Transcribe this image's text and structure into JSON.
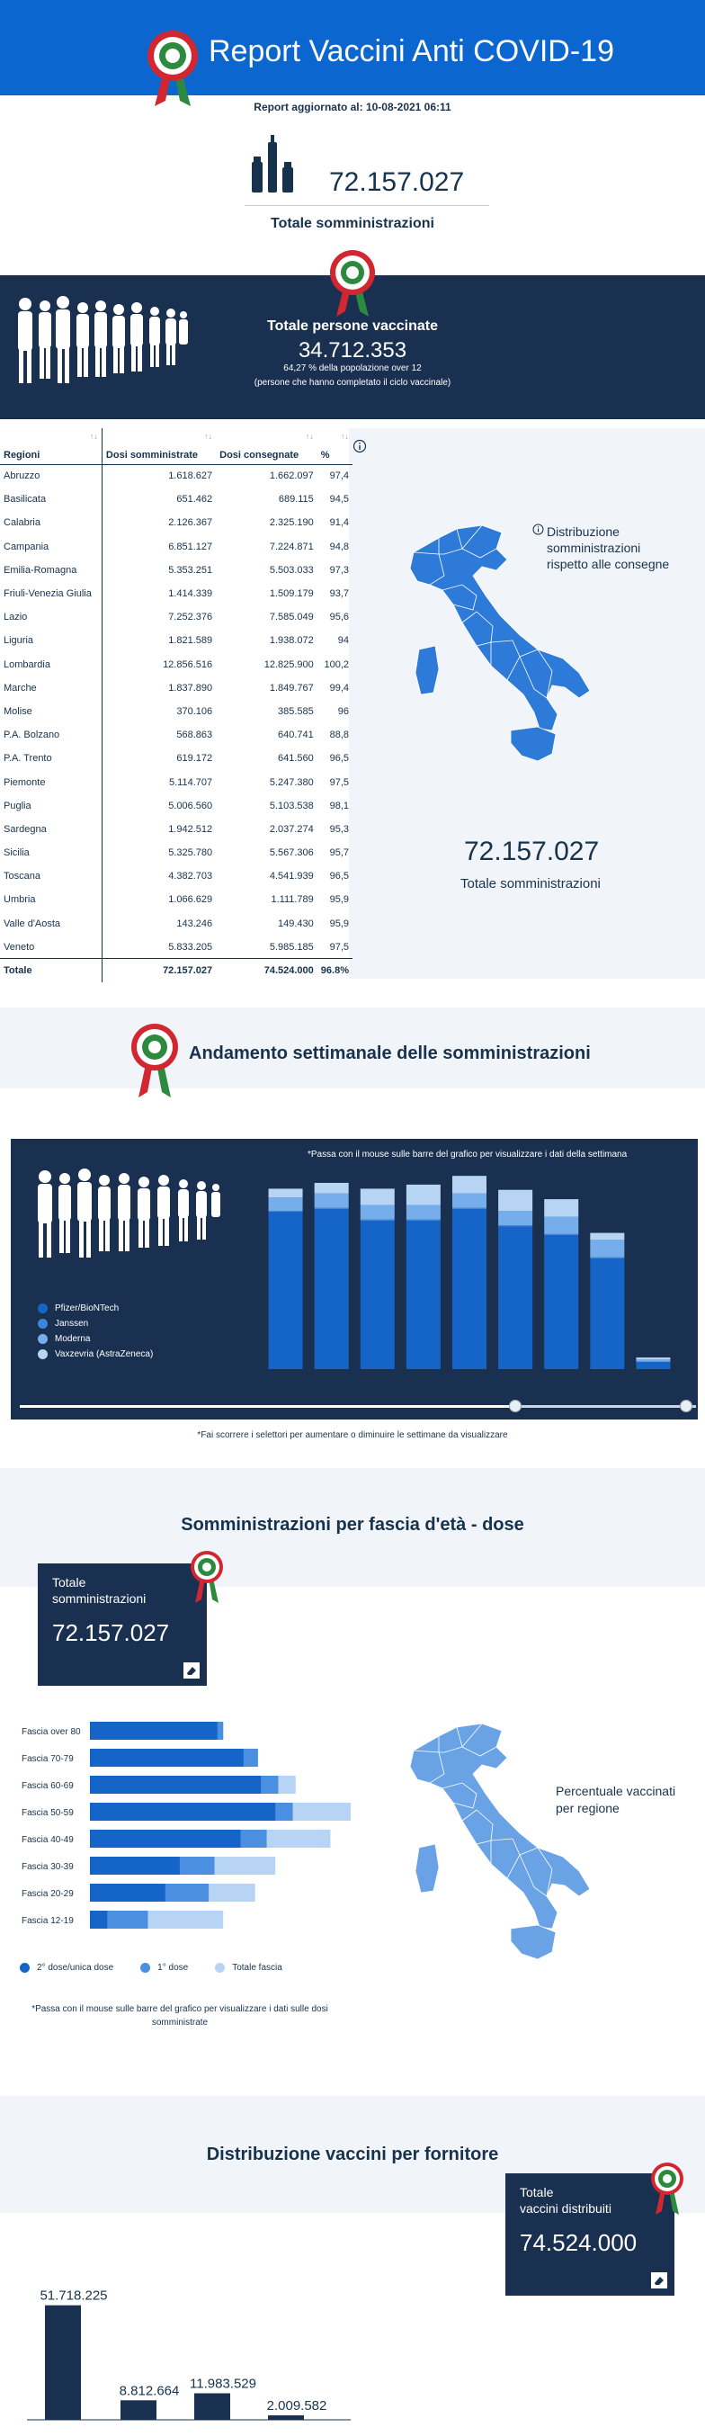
{
  "header": {
    "title": "Report Vaccini Anti COVID-19"
  },
  "updated": "Report aggiornato al: 10-08-2021 06:11",
  "total_administrations": {
    "value": "72.157.027",
    "label": "Totale somministrazioni"
  },
  "vaccinated": {
    "label": "Totale persone vaccinate",
    "value": "34.712.353",
    "percent_note": "64,27 % della popolazione over 12",
    "cycle_note": "(persone che hanno completato il ciclo vaccinale)"
  },
  "regions_table": {
    "headers": [
      "Regioni",
      "Dosi somministrate",
      "Dosi consegnate",
      "%"
    ],
    "rows": [
      [
        "Abruzzo",
        "1.618.627",
        "1.662.097",
        "97,4"
      ],
      [
        "Basilicata",
        "651.462",
        "689.115",
        "94,5"
      ],
      [
        "Calabria",
        "2.126.367",
        "2.325.190",
        "91,4"
      ],
      [
        "Campania",
        "6.851.127",
        "7.224.871",
        "94,8"
      ],
      [
        "Emilia-Romagna",
        "5.353.251",
        "5.503.033",
        "97,3"
      ],
      [
        "Friuli-Venezia Giulia",
        "1.414.339",
        "1.509.179",
        "93,7"
      ],
      [
        "Lazio",
        "7.252.376",
        "7.585.049",
        "95,6"
      ],
      [
        "Liguria",
        "1.821.589",
        "1.938.072",
        "94"
      ],
      [
        "Lombardia",
        "12.856.516",
        "12.825.900",
        "100,2"
      ],
      [
        "Marche",
        "1.837.890",
        "1.849.767",
        "99,4"
      ],
      [
        "Molise",
        "370.106",
        "385.585",
        "96"
      ],
      [
        "P.A. Bolzano",
        "568.863",
        "640.741",
        "88,8"
      ],
      [
        "P.A. Trento",
        "619.172",
        "641.560",
        "96,5"
      ],
      [
        "Piemonte",
        "5.114.707",
        "5.247.380",
        "97,5"
      ],
      [
        "Puglia",
        "5.006.560",
        "5.103.538",
        "98,1"
      ],
      [
        "Sardegna",
        "1.942.512",
        "2.037.274",
        "95,3"
      ],
      [
        "Sicilia",
        "5.325.780",
        "5.567.306",
        "95,7"
      ],
      [
        "Toscana",
        "4.382.703",
        "4.541.939",
        "96,5"
      ],
      [
        "Umbria",
        "1.066.629",
        "1.111.789",
        "95,9"
      ],
      [
        "Valle d'Aosta",
        "143.246",
        "149.430",
        "95,9"
      ],
      [
        "Veneto",
        "5.833.205",
        "5.985.185",
        "97,5"
      ]
    ],
    "total": [
      "Totale",
      "72.157.027",
      "74.524.000",
      "96.8%"
    ]
  },
  "map1": {
    "caption_line1": "Distribuzione",
    "caption_line2": "somministrazioni",
    "caption_line3": "rispetto alle consegne",
    "total_value": "72.157.027",
    "total_label": "Totale somministrazioni"
  },
  "weekly": {
    "title": "Andamento settimanale delle somministrazioni",
    "hint": "*Passa con il mouse sulle barre del grafico per visualizzare i dati della settimana",
    "legend": [
      "Pfizer/BioNTech",
      "Janssen",
      "Moderna",
      "Vaxzevria (AstraZeneca)"
    ],
    "note": "*Fai scorrere i selettori per aumentare o diminuire le settimane da visualizzare"
  },
  "age": {
    "title": "Somministrazioni per fascia d'età - dose",
    "card_label_line1": "Totale",
    "card_label_line2": "somministrazioni",
    "card_value": "72.157.027",
    "legend": [
      "2° dose/unica dose",
      "1° dose",
      "Totale fascia"
    ],
    "map_caption_line1": "Percentuale vaccinati",
    "map_caption_line2": "per regione",
    "note_line1": "*Passa con il mouse sulle barre del grafico per visualizzare i dati sulle dosi",
    "note_line2": "somministrate"
  },
  "chart_data": [
    {
      "type": "bar",
      "name": "weekly",
      "categories": [
        "",
        "",
        "",
        "",
        "",
        "",
        "",
        "",
        ""
      ],
      "series": [
        {
          "name": "Pfizer/BioNTech",
          "values": [
            2.7,
            2.75,
            2.55,
            2.55,
            2.75,
            2.45,
            2.3,
            1.9,
            0.12
          ]
        },
        {
          "name": "Janssen",
          "values": [
            0.02,
            0.02,
            0.02,
            0.02,
            0.02,
            0.02,
            0.02,
            0.02,
            0.01
          ]
        },
        {
          "name": "Moderna",
          "values": [
            0.23,
            0.25,
            0.25,
            0.25,
            0.25,
            0.25,
            0.3,
            0.3,
            0.04
          ]
        },
        {
          "name": "Vaxzevria (AstraZeneca)",
          "values": [
            0.15,
            0.18,
            0.28,
            0.35,
            0.3,
            0.36,
            0.3,
            0.12,
            0.03
          ]
        }
      ],
      "ylim": [
        0,
        3.4
      ]
    },
    {
      "type": "bar",
      "name": "age",
      "categories": [
        "Fascia over 80",
        "Fascia 70-79",
        "Fascia 60-69",
        "Fascia 50-59",
        "Fascia 40-49",
        "Fascia 30-39",
        "Fascia 20-29",
        "Fascia 12-19"
      ],
      "series": [
        {
          "name": "2° dose/unica dose",
          "values": [
            4.4,
            5.3,
            5.9,
            6.4,
            5.2,
            3.1,
            2.6,
            0.6
          ]
        },
        {
          "name": "1° dose",
          "values": [
            0.2,
            0.5,
            0.6,
            0.6,
            0.9,
            1.2,
            1.5,
            1.4
          ]
        },
        {
          "name": "Totale fascia",
          "values": [
            4.6,
            5.8,
            7.1,
            9.0,
            8.3,
            6.4,
            5.7,
            4.6
          ]
        }
      ],
      "xlim": [
        0,
        9
      ]
    },
    {
      "type": "bar",
      "name": "suppliers",
      "categories": [
        "",
        "",
        "",
        ""
      ],
      "values": [
        51718225,
        8812664,
        11983529,
        2009582
      ],
      "labels": [
        "51.718.225",
        "8.812.664",
        "11.983.529",
        "2.009.582"
      ],
      "ylim": [
        0,
        52000000
      ]
    }
  ],
  "suppliers": {
    "title": "Distribuzione vaccini per fornitore",
    "card_label_line1": "Totale",
    "card_label_line2": "vaccini distribuiti",
    "card_value": "74.524.000"
  },
  "colors": {
    "header": "#0b66cf",
    "navy": "#1a3050",
    "pfizer": "#1565c8",
    "janssen": "#3d86dc",
    "moderna": "#76aeeb",
    "astrazeneca": "#b7d4f4",
    "map_fill": "#2e7ad8"
  }
}
